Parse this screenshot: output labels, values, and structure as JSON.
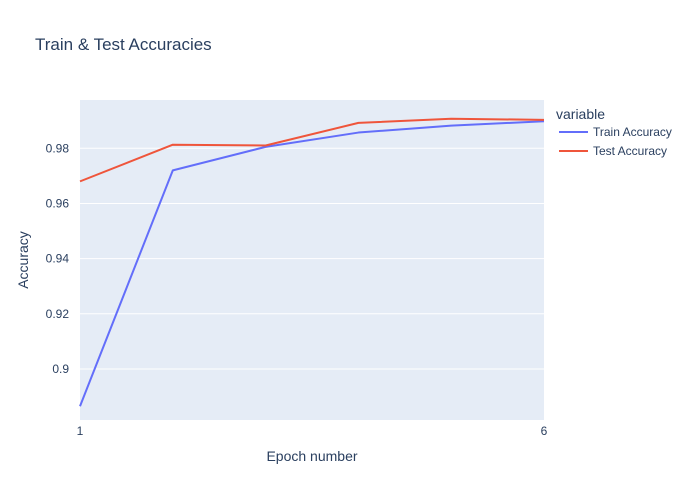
{
  "chart_data": {
    "type": "line",
    "title": "Train & Test Accuracies",
    "xlabel": "Epoch number",
    "ylabel": "Accuracy",
    "x": [
      1,
      2,
      3,
      4,
      5,
      6
    ],
    "xticks": [
      1,
      6
    ],
    "xlim": [
      1,
      6
    ],
    "ylim": [
      0.8815,
      0.9975
    ],
    "yticks": [
      0.9,
      0.92,
      0.94,
      0.96,
      0.98
    ],
    "ytick_labels": [
      "0.9",
      "0.92",
      "0.94",
      "0.96",
      "0.98"
    ],
    "grid": "y",
    "legend": {
      "title": "variable",
      "placement": "right"
    },
    "series": [
      {
        "name": "Train Accuracy",
        "color": "#636efa",
        "values": [
          0.8865,
          0.972,
          0.9805,
          0.9857,
          0.9882,
          0.9898
        ]
      },
      {
        "name": "Test Accuracy",
        "color": "#ef553b",
        "values": [
          0.968,
          0.9813,
          0.981,
          0.9892,
          0.9907,
          0.9903
        ]
      }
    ],
    "background": "#e5ecf6",
    "gridline_color": "#ffffff"
  }
}
